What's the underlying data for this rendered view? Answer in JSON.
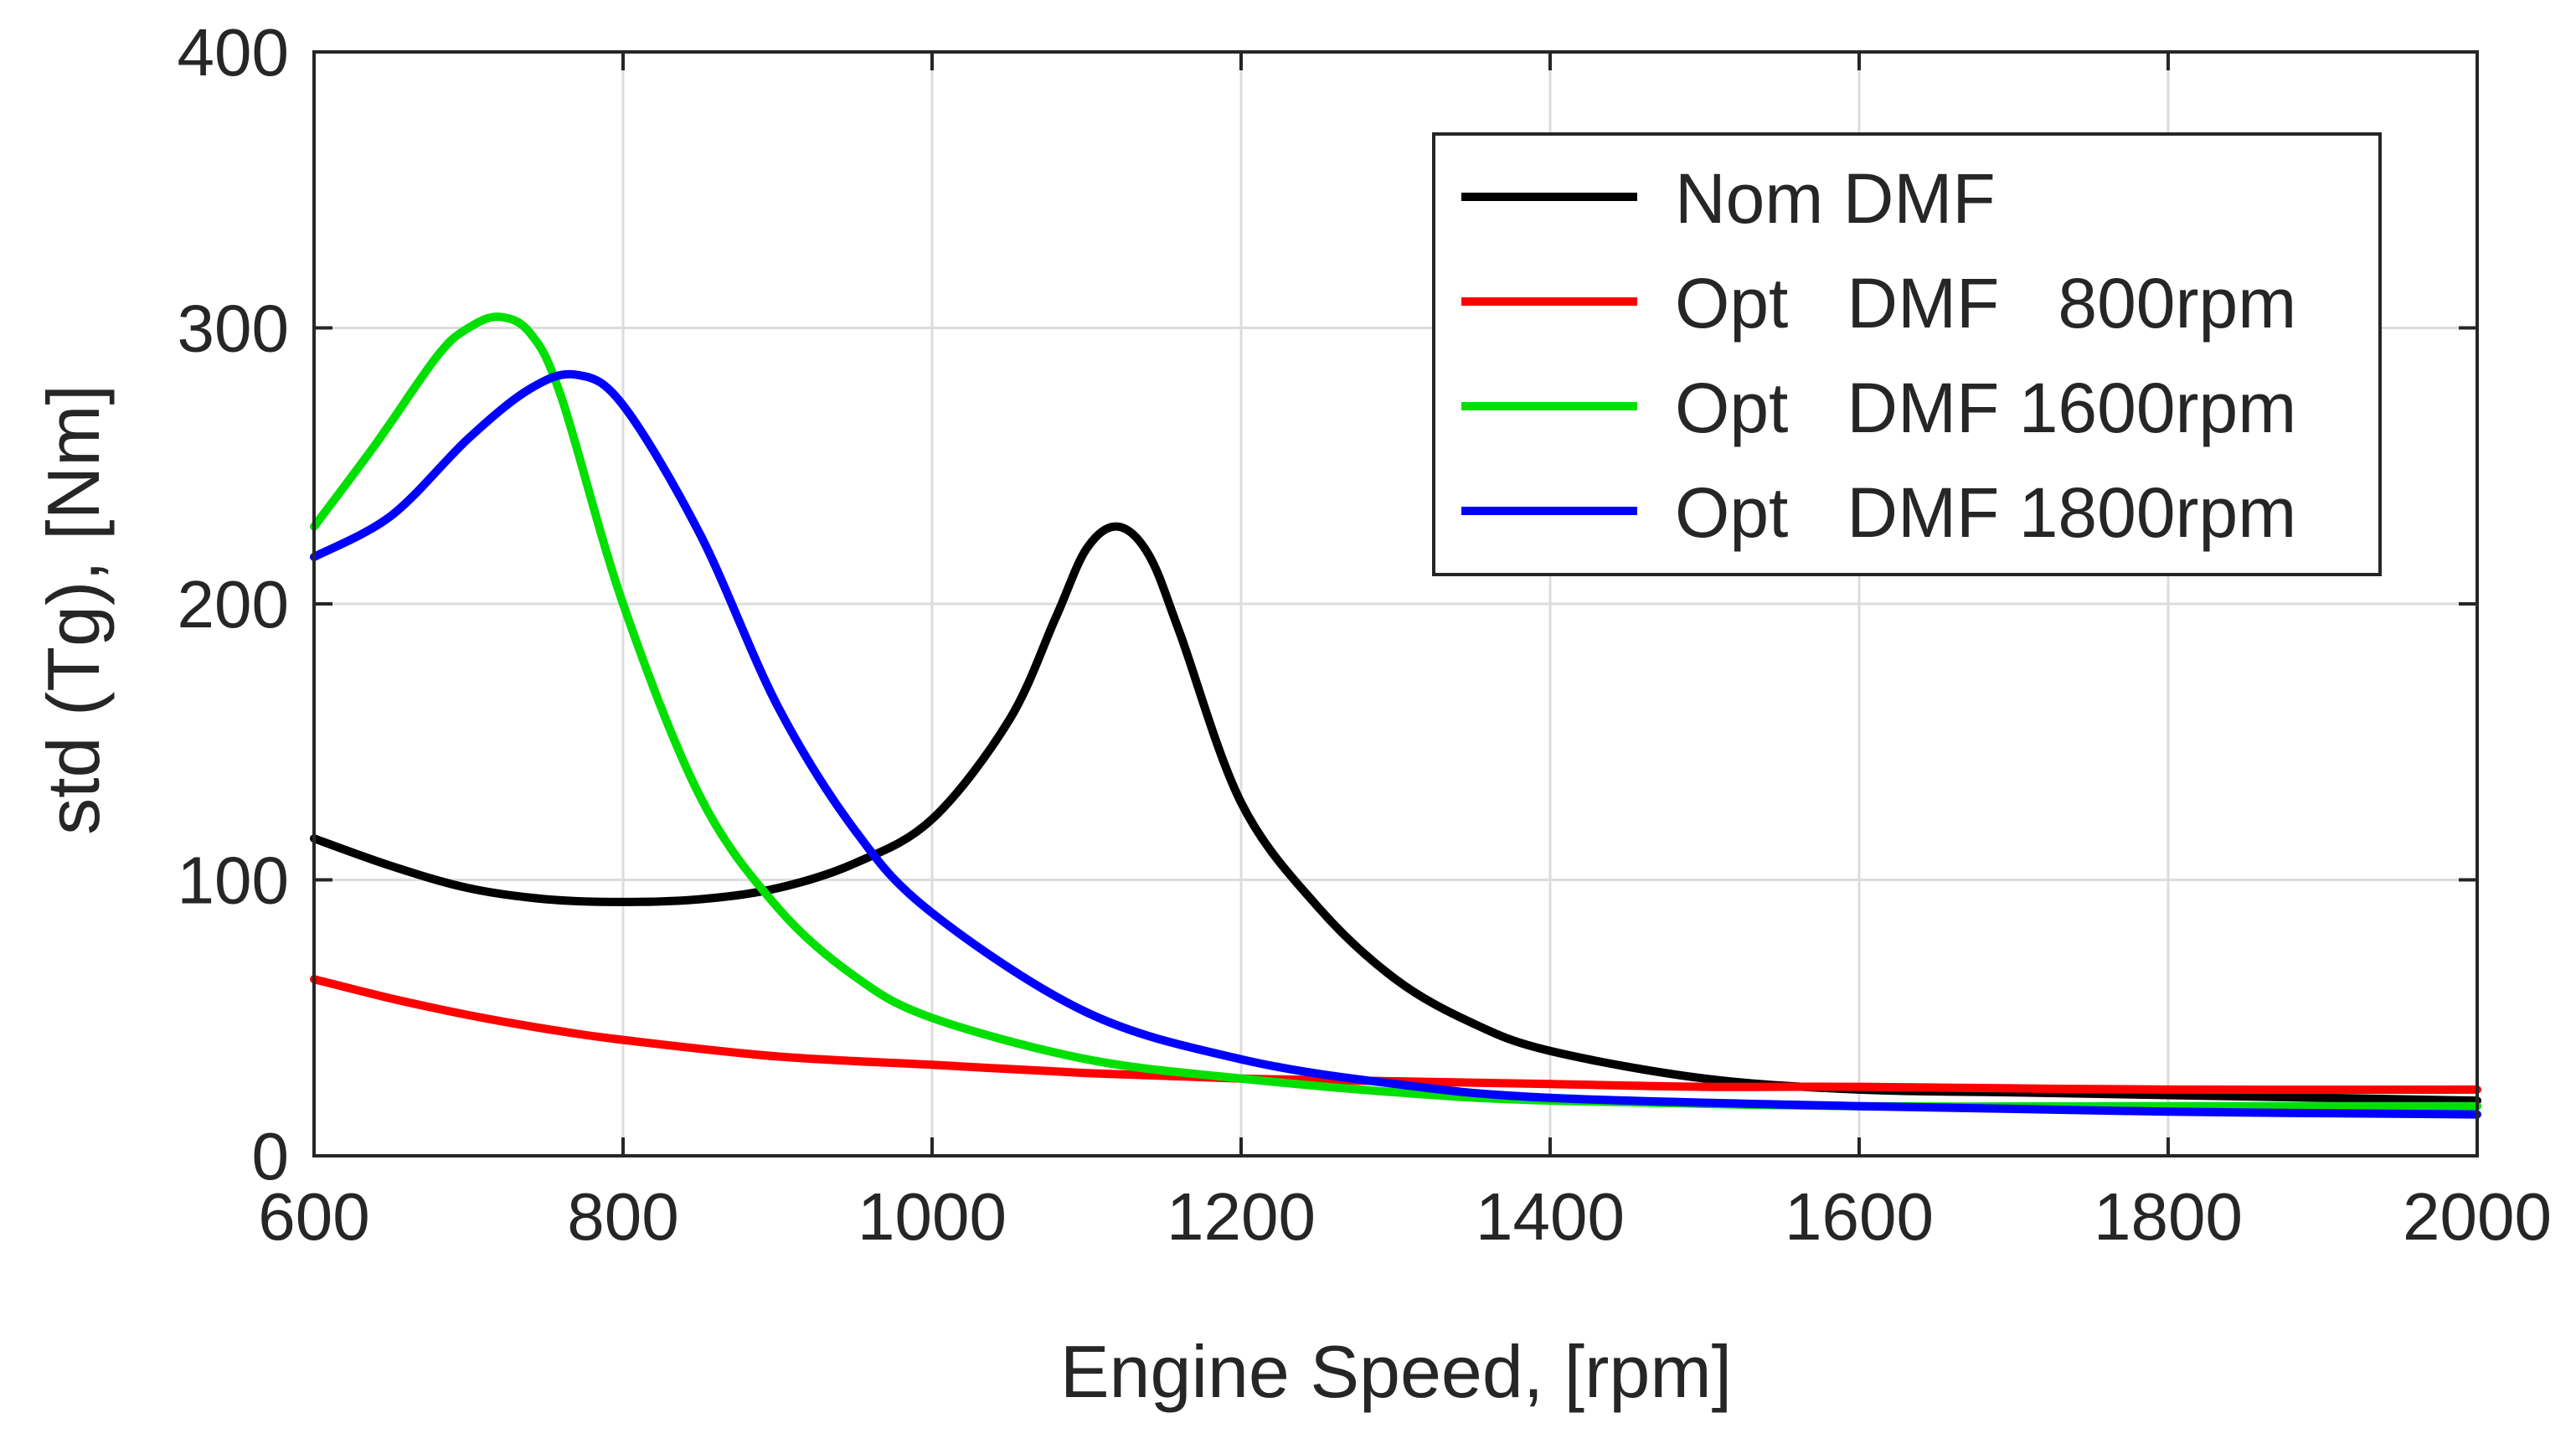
{
  "chart_data": {
    "type": "line",
    "title": "",
    "xlabel": "Engine Speed, [rpm]",
    "ylabel": "std (Tg), [Nm]",
    "xlim": [
      600,
      2000
    ],
    "ylim": [
      0,
      400
    ],
    "xticks": [
      600,
      800,
      1000,
      1200,
      1400,
      1600,
      1800,
      2000
    ],
    "yticks": [
      0,
      100,
      200,
      300,
      400
    ],
    "grid": true,
    "legend_position": "top-right",
    "series": [
      {
        "name": "Nom DMF",
        "color": "#000000",
        "x": [
          600,
          650,
          700,
          750,
          800,
          850,
          900,
          950,
          1000,
          1050,
          1080,
          1100,
          1120,
          1140,
          1160,
          1200,
          1250,
          1300,
          1350,
          1400,
          1500,
          1600,
          1700,
          1800,
          1900,
          2000
        ],
        "y": [
          115,
          105,
          97,
          93,
          92,
          93,
          97,
          106,
          122,
          158,
          195,
          220,
          228,
          218,
          190,
          128,
          90,
          64,
          48,
          38,
          28,
          24,
          23,
          22,
          21,
          20
        ]
      },
      {
        "name": "Opt   DMF   800rpm",
        "color": "#ff0000",
        "x": [
          600,
          650,
          700,
          750,
          800,
          900,
          1000,
          1100,
          1200,
          1300,
          1400,
          1500,
          1600,
          1800,
          2000
        ],
        "y": [
          64,
          57,
          51,
          46,
          42,
          36,
          33,
          30,
          28,
          27,
          26,
          25,
          25,
          24,
          24
        ]
      },
      {
        "name": "Opt   DMF 1600rpm",
        "color": "#00e000",
        "x": [
          600,
          640,
          680,
          700,
          720,
          740,
          760,
          800,
          850,
          900,
          950,
          1000,
          1100,
          1200,
          1300,
          1400,
          1600,
          1800,
          2000
        ],
        "y": [
          228,
          258,
          290,
          300,
          304,
          298,
          275,
          200,
          130,
          90,
          65,
          50,
          35,
          28,
          23,
          20,
          18,
          18,
          18
        ]
      },
      {
        "name": "Opt   DMF 1800rpm",
        "color": "#0000ff",
        "x": [
          600,
          650,
          700,
          740,
          770,
          800,
          850,
          900,
          950,
          1000,
          1100,
          1200,
          1300,
          1400,
          1600,
          1800,
          2000
        ],
        "y": [
          217,
          232,
          260,
          278,
          283,
          272,
          225,
          163,
          118,
          88,
          52,
          35,
          26,
          21,
          18,
          16,
          15
        ]
      }
    ]
  }
}
